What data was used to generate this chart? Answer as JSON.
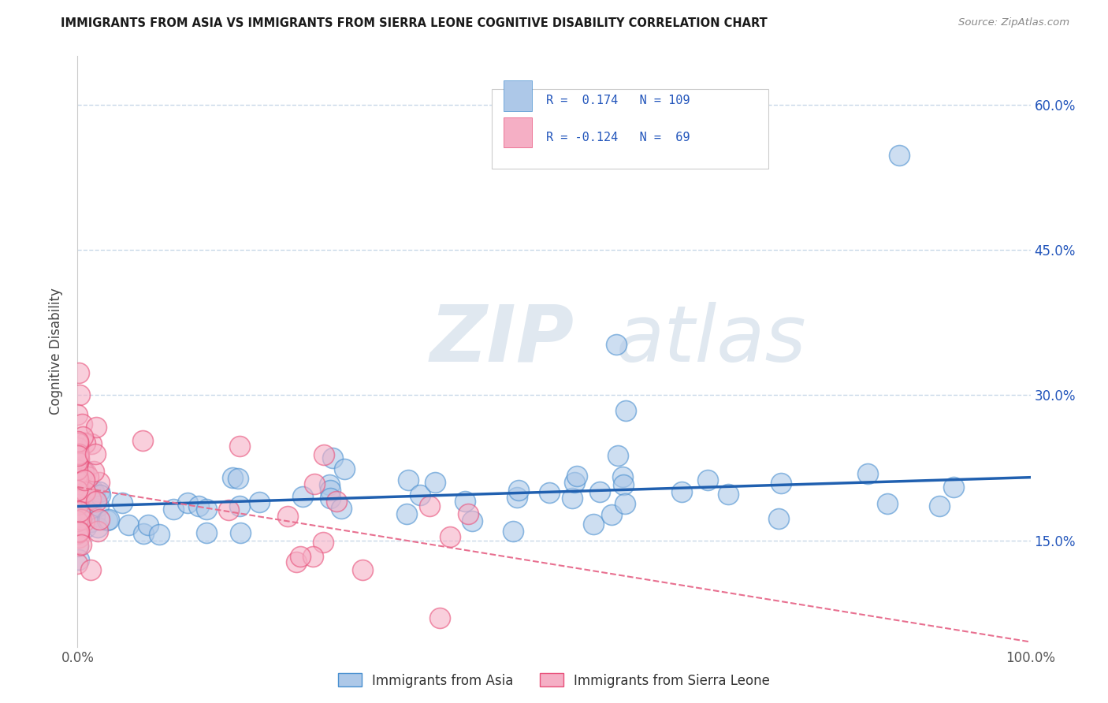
{
  "title": "IMMIGRANTS FROM ASIA VS IMMIGRANTS FROM SIERRA LEONE COGNITIVE DISABILITY CORRELATION CHART",
  "source_text": "Source: ZipAtlas.com",
  "ylabel": "Cognitive Disability",
  "xlim": [
    0.0,
    1.0
  ],
  "ylim": [
    0.04,
    0.65
  ],
  "x_tick_labels": [
    "0.0%",
    "100.0%"
  ],
  "y_tick_labels": [
    "15.0%",
    "30.0%",
    "45.0%",
    "60.0%"
  ],
  "y_tick_values": [
    0.15,
    0.3,
    0.45,
    0.6
  ],
  "legend_r1": "R =  0.174",
  "legend_n1": "N = 109",
  "legend_r2": "R = -0.124",
  "legend_n2": "N =  69",
  "color_asia": "#adc8e8",
  "color_sierra": "#f5afc5",
  "edge_color_asia": "#4a90d0",
  "edge_color_sierra": "#e8507a",
  "line_color_asia": "#2060b0",
  "line_color_sierra": "#e87090",
  "background_color": "#ffffff",
  "grid_color": "#c8d8e8",
  "title_color": "#1a1a1a",
  "source_color": "#888888",
  "legend_text_color": "#2255bb",
  "watermark_color": "#e0e8f0",
  "asia_line_start_y": 0.185,
  "asia_line_end_y": 0.215,
  "sierra_line_start_y": 0.205,
  "sierra_line_end_y": 0.045
}
